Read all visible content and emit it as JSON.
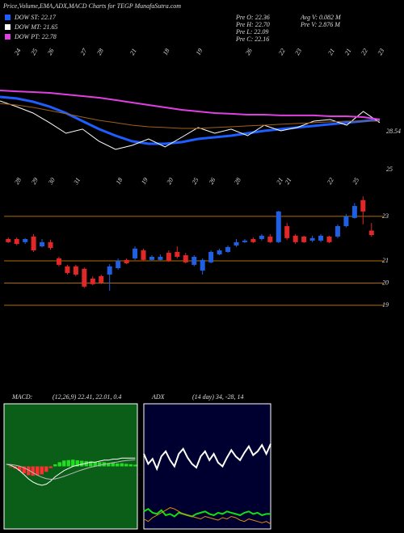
{
  "header": {
    "title": "Price,Volume,EMA,ADX,MACD Charts for TEGP MunafaSutra.com",
    "stats": [
      "Pre  O: 22.36",
      "Pre  H: 22.70",
      "Pre  L: 22.09",
      "Pre  C: 22.16",
      "Avg V: 0.082  M",
      "Pre  V: 2.876  M"
    ]
  },
  "chart_data": [
    {
      "type": "line",
      "legend": "top-left",
      "ylim": [
        24.62,
        35.92
      ],
      "yticks": [
        25,
        28.54
      ],
      "grid": false,
      "xticks": [
        {
          "value": 1,
          "label": "24"
        },
        {
          "value": 2,
          "label": "25"
        },
        {
          "value": 3,
          "label": "26"
        },
        {
          "value": 5,
          "label": "27"
        },
        {
          "value": 6,
          "label": "28"
        },
        {
          "value": 8,
          "label": "21"
        },
        {
          "value": 10,
          "label": "18"
        },
        {
          "value": 12,
          "label": "19"
        },
        {
          "value": 15,
          "label": "26"
        },
        {
          "value": 17,
          "label": "22"
        },
        {
          "value": 18,
          "label": "23"
        },
        {
          "value": 20,
          "label": "21"
        },
        {
          "value": 21,
          "label": "21"
        },
        {
          "value": 22,
          "label": "22"
        },
        {
          "value": 23,
          "label": "23"
        }
      ],
      "series": [
        {
          "name": "DOW ST: 22.17",
          "color": "#1e5eff",
          "width": 3,
          "values": [
            31.78,
            31.63,
            31.33,
            30.87,
            30.27,
            29.52,
            28.77,
            28.16,
            27.64,
            27.41,
            27.41,
            27.56,
            27.86,
            28.01,
            28.16,
            28.39,
            28.61,
            28.77,
            28.92,
            29.07,
            29.22,
            29.37,
            29.52,
            29.67
          ]
        },
        {
          "name": "DOW MT: 21.65",
          "color": "#ffffff",
          "width": 1,
          "values": [
            31.4,
            30.87,
            30.27,
            29.37,
            28.39,
            28.77,
            27.64,
            26.88,
            27.26,
            27.86,
            27.11,
            28.01,
            28.92,
            28.39,
            28.77,
            28.16,
            29.14,
            28.61,
            28.92,
            29.52,
            29.67,
            29.14,
            30.42,
            29.37
          ]
        },
        {
          "name": "DOW PT: 22.78",
          "color": "#e040e0",
          "width": 2,
          "values": [
            32.38,
            32.3,
            32.23,
            32.15,
            32.0,
            31.85,
            31.7,
            31.48,
            31.25,
            31.02,
            30.8,
            30.57,
            30.42,
            30.27,
            30.2,
            30.12,
            30.12,
            30.05,
            30.05,
            30.05,
            29.97,
            29.97,
            29.89,
            29.67
          ]
        },
        {
          "color": "#a0601a",
          "width": 1,
          "values": [
            31.17,
            31.02,
            30.8,
            30.5,
            30.2,
            29.89,
            29.59,
            29.37,
            29.14,
            28.99,
            28.92,
            28.84,
            28.84,
            28.92,
            28.99,
            29.07,
            29.14,
            29.22,
            29.3,
            29.37,
            29.45,
            29.52,
            29.52,
            29.52
          ]
        }
      ]
    },
    {
      "type": "candlestick",
      "ylim": [
        18.2,
        24.56
      ],
      "yticks": [
        19,
        20,
        21,
        23
      ],
      "grid": true,
      "grid_color": "#b36b00",
      "up_color": "#2060e0",
      "down_color": "#e02828",
      "xticks": [
        {
          "value": 1,
          "label": "28"
        },
        {
          "value": 3,
          "label": "29"
        },
        {
          "value": 5,
          "label": "30"
        },
        {
          "value": 8,
          "label": "31"
        },
        {
          "value": 13,
          "label": "18"
        },
        {
          "value": 16,
          "label": "19"
        },
        {
          "value": 19,
          "label": "20"
        },
        {
          "value": 22,
          "label": "25"
        },
        {
          "value": 24,
          "label": "26"
        },
        {
          "value": 27,
          "label": "28"
        },
        {
          "value": 32,
          "label": "21"
        },
        {
          "value": 33,
          "label": "21"
        },
        {
          "value": 38,
          "label": "22"
        },
        {
          "value": 41,
          "label": "25"
        }
      ],
      "open": [
        21.98,
        21.98,
        21.84,
        22.09,
        21.65,
        21.84,
        21.11,
        20.75,
        20.75,
        20.64,
        20.2,
        20.31,
        20.38,
        20.67,
        21.04,
        21.11,
        21.47,
        21.04,
        21.04,
        21.36,
        21.4,
        21.25,
        20.82,
        20.56,
        20.93,
        21.29,
        21.4,
        21.69,
        21.84,
        21.98,
        21.98,
        22.09,
        21.84,
        22.56,
        22.13,
        22.09,
        21.91,
        21.91,
        22.09,
        22.09,
        22.56,
        22.93,
        23.73,
        22.36
      ],
      "high": [
        22.05,
        22.05,
        22.02,
        22.2,
        21.98,
        21.95,
        21.18,
        20.82,
        20.82,
        20.7,
        20.3,
        20.38,
        20.85,
        21.1,
        21.1,
        21.65,
        21.55,
        21.25,
        21.29,
        21.47,
        21.65,
        21.36,
        21.25,
        21.11,
        21.47,
        21.55,
        21.69,
        21.98,
        21.98,
        22.05,
        22.2,
        22.2,
        23.25,
        22.7,
        22.2,
        22.13,
        22.13,
        22.2,
        22.13,
        22.64,
        23.1,
        23.6,
        23.9,
        22.7
      ],
      "low": [
        21.8,
        21.7,
        21.76,
        21.4,
        21.6,
        21.5,
        20.75,
        20.38,
        20.3,
        19.78,
        19.9,
        19.95,
        19.65,
        20.6,
        20.85,
        21.04,
        20.98,
        20.98,
        21.0,
        20.95,
        21.11,
        20.89,
        20.75,
        20.38,
        20.89,
        21.25,
        21.36,
        21.62,
        21.8,
        21.8,
        21.91,
        21.8,
        21.8,
        21.95,
        21.76,
        21.8,
        21.84,
        21.84,
        21.8,
        22.02,
        22.5,
        22.9,
        22.64,
        22.09
      ],
      "close": [
        21.84,
        21.76,
        21.98,
        21.47,
        21.84,
        21.58,
        20.82,
        20.45,
        20.38,
        19.84,
        19.95,
        20.02,
        20.75,
        21.0,
        20.89,
        21.55,
        21.04,
        21.18,
        21.18,
        21.0,
        21.18,
        20.93,
        21.18,
        21.04,
        21.4,
        21.47,
        21.62,
        21.84,
        21.91,
        21.84,
        22.13,
        21.84,
        23.22,
        22.02,
        21.84,
        21.84,
        22.02,
        22.13,
        21.84,
        22.56,
        23.0,
        23.47,
        23.22,
        22.16
      ]
    },
    {
      "type": "macd",
      "title": "MACD:",
      "subtitle": "(12,26,9) 22.41, 22.01, 0.4",
      "ylim": [
        -3,
        3
      ],
      "background": "#0b5e18",
      "up_color": "#22dd22",
      "down_color": "#ff3030",
      "histogram": [
        0,
        -0.04,
        -0.11,
        -0.21,
        -0.33,
        -0.42,
        -0.45,
        -0.43,
        -0.38,
        -0.26,
        -0.08,
        0.1,
        0.2,
        0.28,
        0.3,
        0.32,
        0.29,
        0.27,
        0.25,
        0.24,
        0.2,
        0.2,
        0.2,
        0.16,
        0.17,
        0.14,
        0.15,
        0.12,
        0.1,
        0.08
      ],
      "series": [
        {
          "color": "#ffffff",
          "values": [
            0.1,
            0.05,
            -0.05,
            -0.2,
            -0.4,
            -0.6,
            -0.75,
            -0.85,
            -0.9,
            -0.85,
            -0.7,
            -0.5,
            -0.35,
            -0.2,
            -0.1,
            0,
            0.05,
            0.1,
            0.15,
            0.2,
            0.2,
            0.25,
            0.3,
            0.3,
            0.35,
            0.35,
            0.4,
            0.4,
            0.4,
            0.4
          ]
        },
        {
          "color": "#bbbbbb",
          "values": [
            0.1,
            0.09,
            0.06,
            0.01,
            -0.07,
            -0.18,
            -0.3,
            -0.42,
            -0.52,
            -0.59,
            -0.62,
            -0.6,
            -0.55,
            -0.48,
            -0.4,
            -0.32,
            -0.24,
            -0.17,
            -0.1,
            -0.04,
            0,
            0.05,
            0.1,
            0.14,
            0.18,
            0.21,
            0.25,
            0.28,
            0.3,
            0.32
          ]
        }
      ]
    },
    {
      "type": "line",
      "title": "ADX",
      "subtitle": "(14 day) 34, -28, 14",
      "ylim": [
        0,
        100
      ],
      "background": "#000030",
      "series": [
        {
          "color": "#ffffff",
          "width": 2,
          "values": [
            60,
            52,
            56,
            48,
            58,
            62,
            55,
            50,
            60,
            64,
            57,
            52,
            49,
            58,
            62,
            55,
            60,
            53,
            50,
            57,
            63,
            58,
            55,
            61,
            66,
            59,
            62,
            67,
            60,
            68
          ]
        },
        {
          "color": "#10e010",
          "width": 2,
          "values": [
            14,
            16,
            13,
            12,
            15,
            11,
            12,
            10,
            13,
            12,
            11,
            10,
            12,
            13,
            14,
            12,
            11,
            13,
            12,
            14,
            13,
            12,
            11,
            13,
            14,
            12,
            13,
            11,
            12,
            12
          ]
        },
        {
          "color": "#e08a10",
          "width": 1,
          "values": [
            8,
            6,
            9,
            11,
            13,
            15,
            17,
            16,
            14,
            12,
            11,
            10,
            9,
            8,
            10,
            9,
            8,
            7,
            9,
            8,
            10,
            9,
            7,
            6,
            8,
            7,
            6,
            5,
            6,
            4
          ]
        }
      ]
    }
  ]
}
